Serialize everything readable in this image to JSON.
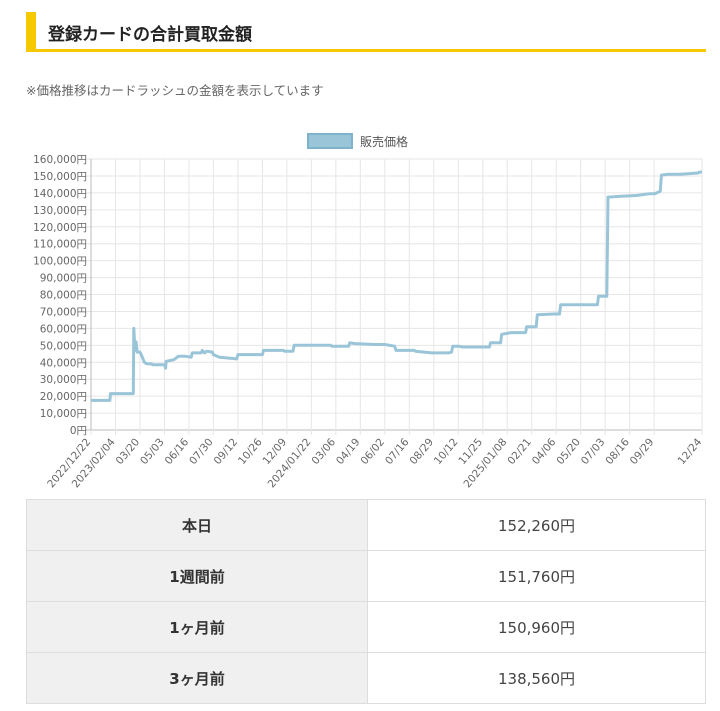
{
  "header": {
    "title": "登録カードの合計買取金額",
    "accent_color": "#f5c800"
  },
  "note": "※価格推移はカードラッシュの金額を表示しています",
  "chart_data": {
    "type": "line",
    "legend": {
      "label": "販売価格",
      "placement": "top-center"
    },
    "series": [
      {
        "name": "販売価格",
        "color": "#9ac5d8",
        "points": [
          [
            "2022-12-22",
            17500
          ],
          [
            "2023-01-25",
            17500
          ],
          [
            "2023-01-26",
            21500
          ],
          [
            "2023-03-08",
            21500
          ],
          [
            "2023-03-09",
            60000
          ],
          [
            "2023-03-11",
            47000
          ],
          [
            "2023-03-13",
            52000
          ],
          [
            "2023-03-15",
            46000
          ],
          [
            "2023-03-20",
            46000
          ],
          [
            "2023-03-23",
            44000
          ],
          [
            "2023-03-28",
            40000
          ],
          [
            "2023-04-02",
            39000
          ],
          [
            "2023-04-10",
            39000
          ],
          [
            "2023-04-12",
            38500
          ],
          [
            "2023-05-03",
            38500
          ],
          [
            "2023-05-05",
            36500
          ],
          [
            "2023-05-06",
            40500
          ],
          [
            "2023-05-20",
            41500
          ],
          [
            "2023-05-28",
            43500
          ],
          [
            "2023-06-10",
            43500
          ],
          [
            "2023-06-20",
            43000
          ],
          [
            "2023-06-22",
            45500
          ],
          [
            "2023-07-08",
            45500
          ],
          [
            "2023-07-10",
            47000
          ],
          [
            "2023-07-14",
            45500
          ],
          [
            "2023-07-18",
            46500
          ],
          [
            "2023-07-28",
            46000
          ],
          [
            "2023-07-30",
            44500
          ],
          [
            "2023-08-10",
            43000
          ],
          [
            "2023-08-25",
            42500
          ],
          [
            "2023-09-10",
            42000
          ],
          [
            "2023-09-12",
            44500
          ],
          [
            "2023-10-26",
            44500
          ],
          [
            "2023-10-28",
            47000
          ],
          [
            "2023-12-03",
            47000
          ],
          [
            "2023-12-05",
            46500
          ],
          [
            "2023-12-20",
            46500
          ],
          [
            "2023-12-22",
            50000
          ],
          [
            "2024-02-26",
            50000
          ],
          [
            "2024-02-28",
            49500
          ],
          [
            "2024-03-06",
            49500
          ],
          [
            "2024-03-29",
            49500
          ],
          [
            "2024-03-31",
            51500
          ],
          [
            "2024-04-10",
            51000
          ],
          [
            "2024-05-15",
            50500
          ],
          [
            "2024-06-02",
            50500
          ],
          [
            "2024-06-20",
            49500
          ],
          [
            "2024-06-22",
            47000
          ],
          [
            "2024-07-25",
            47000
          ],
          [
            "2024-07-27",
            46500
          ],
          [
            "2024-08-25",
            45500
          ],
          [
            "2024-09-25",
            45500
          ],
          [
            "2024-09-30",
            46000
          ],
          [
            "2024-10-02",
            49500
          ],
          [
            "2024-10-12",
            49500
          ],
          [
            "2024-10-20",
            49000
          ],
          [
            "2024-11-25",
            49000
          ],
          [
            "2024-12-07",
            49000
          ],
          [
            "2024-12-09",
            51500
          ],
          [
            "2024-12-27",
            51500
          ],
          [
            "2024-12-29",
            56500
          ],
          [
            "2025-01-15",
            57500
          ],
          [
            "2025-02-10",
            57500
          ],
          [
            "2025-02-12",
            61000
          ],
          [
            "2025-03-01",
            61000
          ],
          [
            "2025-03-03",
            68000
          ],
          [
            "2025-04-01",
            68500
          ],
          [
            "2025-04-12",
            68500
          ],
          [
            "2025-04-14",
            74000
          ],
          [
            "2025-06-19",
            74000
          ],
          [
            "2025-06-21",
            79000
          ],
          [
            "2025-07-06",
            79000
          ],
          [
            "2025-07-08",
            137500
          ],
          [
            "2025-08-01",
            138000
          ],
          [
            "2025-08-30",
            138500
          ],
          [
            "2025-09-21",
            139500
          ],
          [
            "2025-09-30",
            139500
          ],
          [
            "2025-10-10",
            141000
          ],
          [
            "2025-10-12",
            150500
          ],
          [
            "2025-10-25",
            151000
          ],
          [
            "2025-11-15",
            151000
          ],
          [
            "2025-12-17",
            151760
          ],
          [
            "2025-12-19",
            152260
          ],
          [
            "2025-12-24",
            152260
          ]
        ]
      }
    ],
    "x_ticks": [
      {
        "date": "2022-12-22",
        "label": "2022/12/22"
      },
      {
        "date": "2023-02-04",
        "label": "2023/02/04"
      },
      {
        "date": "2023-03-20",
        "label": "03/20"
      },
      {
        "date": "2023-05-03",
        "label": "05/03"
      },
      {
        "date": "2023-06-16",
        "label": "06/16"
      },
      {
        "date": "2023-07-30",
        "label": "07/30"
      },
      {
        "date": "2023-09-12",
        "label": "09/12"
      },
      {
        "date": "2023-10-26",
        "label": "10/26"
      },
      {
        "date": "2023-12-09",
        "label": "12/09"
      },
      {
        "date": "2024-01-22",
        "label": "2024/01/22"
      },
      {
        "date": "2024-03-06",
        "label": "03/06"
      },
      {
        "date": "2024-04-19",
        "label": "04/19"
      },
      {
        "date": "2024-06-02",
        "label": "06/02"
      },
      {
        "date": "2024-07-16",
        "label": "07/16"
      },
      {
        "date": "2024-08-29",
        "label": "08/29"
      },
      {
        "date": "2024-10-12",
        "label": "10/12"
      },
      {
        "date": "2024-11-25",
        "label": "11/25"
      },
      {
        "date": "2025-01-08",
        "label": "2025/01/08"
      },
      {
        "date": "2025-02-21",
        "label": "02/21"
      },
      {
        "date": "2025-04-06",
        "label": "04/06"
      },
      {
        "date": "2025-05-20",
        "label": "05/20"
      },
      {
        "date": "2025-07-03",
        "label": "07/03"
      },
      {
        "date": "2025-08-16",
        "label": "08/16"
      },
      {
        "date": "2025-09-29",
        "label": "09/29"
      },
      {
        "date": "2025-12-24",
        "label": "12/24"
      }
    ],
    "y_ticks": [
      {
        "value": 0,
        "label": "0円"
      },
      {
        "value": 10000,
        "label": "10,000円"
      },
      {
        "value": 20000,
        "label": "20,000円"
      },
      {
        "value": 30000,
        "label": "30,000円"
      },
      {
        "value": 40000,
        "label": "40,000円"
      },
      {
        "value": 50000,
        "label": "50,000円"
      },
      {
        "value": 60000,
        "label": "60,000円"
      },
      {
        "value": 70000,
        "label": "70,000円"
      },
      {
        "value": 80000,
        "label": "80,000円"
      },
      {
        "value": 90000,
        "label": "90,000円"
      },
      {
        "value": 100000,
        "label": "100,000円"
      },
      {
        "value": 110000,
        "label": "110,000円"
      },
      {
        "value": 120000,
        "label": "120,000円"
      },
      {
        "value": 130000,
        "label": "130,000円"
      },
      {
        "value": 140000,
        "label": "140,000円"
      },
      {
        "value": 150000,
        "label": "150,000円"
      },
      {
        "value": 160000,
        "label": "160,000円"
      }
    ],
    "ylim": [
      0,
      160000
    ],
    "xlim": [
      "2022-12-22",
      "2025-12-24"
    ],
    "grid": true
  },
  "summary": {
    "rows": [
      {
        "label": "本日",
        "value": "152,260円"
      },
      {
        "label": "1週間前",
        "value": "151,760円"
      },
      {
        "label": "1ヶ月前",
        "value": "150,960円"
      },
      {
        "label": "3ヶ月前",
        "value": "138,560円"
      }
    ]
  }
}
